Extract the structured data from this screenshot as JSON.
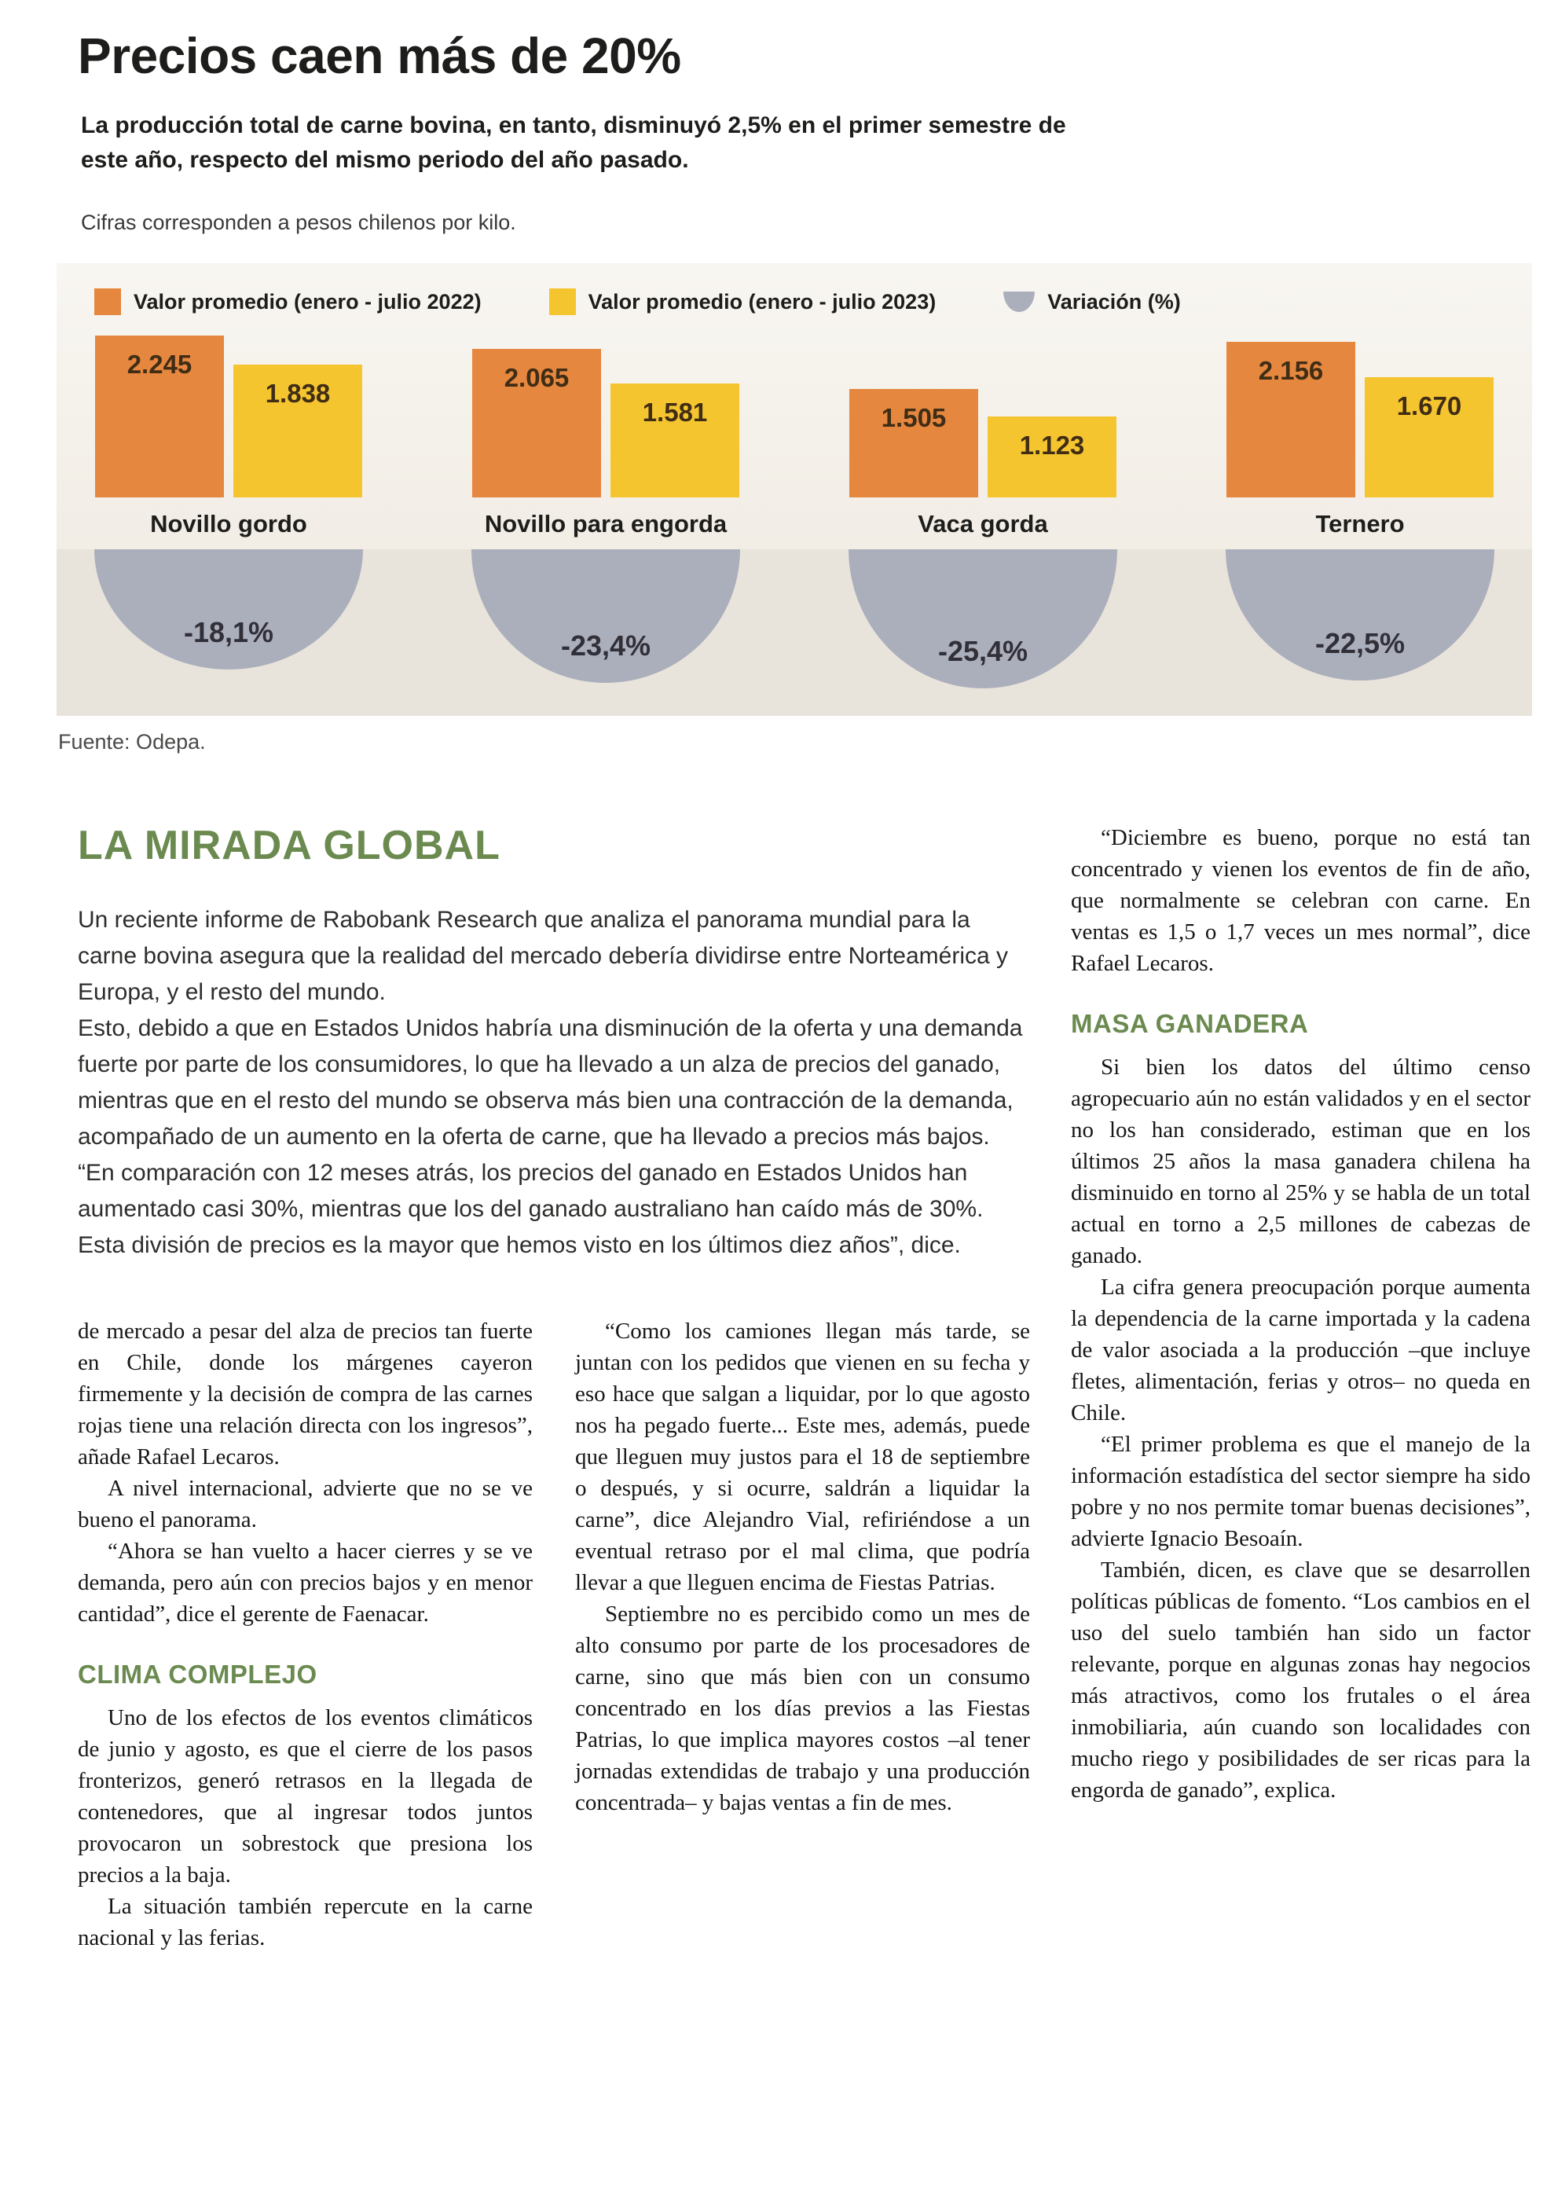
{
  "header": {
    "headline": "Precios caen más de 20%",
    "subtitle": "La producción total de carne bovina, en tanto, disminuyó 2,5% en el primer semestre de este año, respecto del mismo periodo del año pasado.",
    "note": "Cifras corresponden a pesos chilenos por kilo."
  },
  "chart_data": {
    "type": "bar",
    "title": "Precios caen más de 20%",
    "unit": "pesos chilenos por kilo",
    "categories": [
      "Novillo gordo",
      "Novillo para engorda",
      "Vaca gorda",
      "Ternero"
    ],
    "series": [
      {
        "name": "Valor promedio (enero - julio 2022)",
        "color": "#e6873f",
        "values": [
          2245,
          2065,
          1505,
          2156
        ],
        "labels": [
          "2.245",
          "2.065",
          "1.505",
          "2.156"
        ]
      },
      {
        "name": "Valor promedio (enero - julio 2023)",
        "color": "#f5c52f",
        "values": [
          1838,
          1581,
          1123,
          1670
        ],
        "labels": [
          "1.838",
          "1.581",
          "1.123",
          "1.670"
        ]
      }
    ],
    "variation": {
      "name": "Variación (%)",
      "color": "#abafbc",
      "values": [
        -18.1,
        -23.4,
        -25.4,
        -22.5
      ],
      "labels": [
        "-18,1%",
        "-23,4%",
        "-25,4%",
        "-22,5%"
      ]
    },
    "ylim": [
      0,
      2245
    ],
    "grid": false,
    "legend_position": "top"
  },
  "source": "Fuente: Odepa.",
  "article": {
    "section_title": "LA MIRADA GLOBAL",
    "intro_paragraphs": [
      "Un reciente informe de Rabobank Research que analiza el panorama mundial para la carne bovina asegura que la realidad del mercado debería dividirse entre Norteamérica y Europa, y el resto del mundo.",
      "Esto, debido a que en Estados Unidos habría una disminución de la oferta y una demanda fuerte por parte de los consumidores, lo que ha llevado a un alza de precios del ganado, mientras que en el resto del mundo se observa más bien una contracción de la demanda, acompañado de un aumento en la oferta de carne, que ha llevado a precios más bajos.",
      "“En comparación con 12 meses atrás, los precios del ganado en Estados Unidos han aumentado casi 30%, mientras que los del ganado australiano han caído más de 30%. Esta división de precios es la mayor que hemos visto en los últimos diez años”, dice."
    ],
    "columns": [
      {
        "blocks": [
          {
            "type": "p",
            "indent": false,
            "text": "de mercado a pesar del alza de precios tan fuerte en Chile, donde los márgenes cayeron firmemente y la decisión de compra de las carnes rojas tiene una relación directa con los ingresos”, añade Rafael Lecaros."
          },
          {
            "type": "p",
            "indent": true,
            "text": "A nivel internacional, advierte que no se ve bueno el panorama."
          },
          {
            "type": "p",
            "indent": true,
            "text": "“Ahora se han vuelto a hacer cierres y se ve demanda, pero aún con precios bajos y en menor cantidad”, dice el gerente de Faenacar."
          },
          {
            "type": "h",
            "text": "CLIMA COMPLEJO"
          },
          {
            "type": "p",
            "indent": true,
            "text": "Uno de los efectos de los eventos climáticos de junio y agosto, es que el cierre de los pasos fronterizos, generó retrasos en la llegada de contenedores, que al ingresar todos juntos provocaron un sobrestock que presiona los precios a la baja."
          },
          {
            "type": "p",
            "indent": true,
            "text": "La situación también repercute en la carne nacional y las ferias."
          }
        ]
      },
      {
        "blocks": [
          {
            "type": "p",
            "indent": true,
            "text": "“Como los camiones llegan más tarde, se juntan con los pedidos que vienen en su fecha y eso hace que salgan a liquidar, por lo que agosto nos ha pegado fuerte... Este mes, además, puede que lleguen muy justos para el 18 de septiembre o después, y si ocurre, saldrán a liquidar la carne”, dice Alejandro Vial, refiriéndose a un eventual retraso por el mal clima, que podría llevar a que lleguen encima de Fiestas Patrias."
          },
          {
            "type": "p",
            "indent": true,
            "text": "Septiembre no es percibido como un mes de alto consumo por parte de los procesadores de carne, sino que más bien con un consumo concentrado en los días previos a las Fiestas Patrias, lo que implica mayores costos –al tener jornadas extendidas de trabajo y una producción concentrada– y bajas ventas a fin de mes."
          }
        ]
      },
      {
        "blocks": [
          {
            "type": "p",
            "indent": true,
            "text": "“Diciembre es bueno, porque no está tan concentrado y vienen los eventos de fin de año, que normalmente se celebran con carne. En ventas es 1,5 o 1,7 veces un mes normal”, dice Rafael Lecaros."
          },
          {
            "type": "h",
            "text": "MASA GANADERA"
          },
          {
            "type": "p",
            "indent": true,
            "text": "Si bien los datos del último censo agropecuario aún no están validados y en el sector no los han considerado, estiman que en los últimos 25 años la masa ganadera chilena ha disminuido en torno al 25% y se habla de un total actual en torno a 2,5 millones de cabezas de ganado."
          },
          {
            "type": "p",
            "indent": true,
            "text": "La cifra genera preocupación porque aumenta la dependencia de la carne importada y la cadena de valor asociada a la producción –que incluye fletes, alimentación, ferias y otros– no queda en Chile."
          },
          {
            "type": "p",
            "indent": true,
            "text": "“El primer problema es que el manejo de la información estadística del sector siempre ha sido pobre y no nos permite tomar buenas decisiones”, advierte Ignacio Besoaín."
          },
          {
            "type": "p",
            "indent": true,
            "text": "También, dicen, es clave que se desarrollen políticas públicas de fomento. “Los cambios en el uso del suelo también han sido un factor relevante, porque en algunas zonas hay negocios más atractivos, como los frutales o el área inmobiliaria, aún cuando son localidades con mucho riego y posibilidades de ser ricas para la engorda de ganado”, explica."
          }
        ]
      }
    ]
  }
}
